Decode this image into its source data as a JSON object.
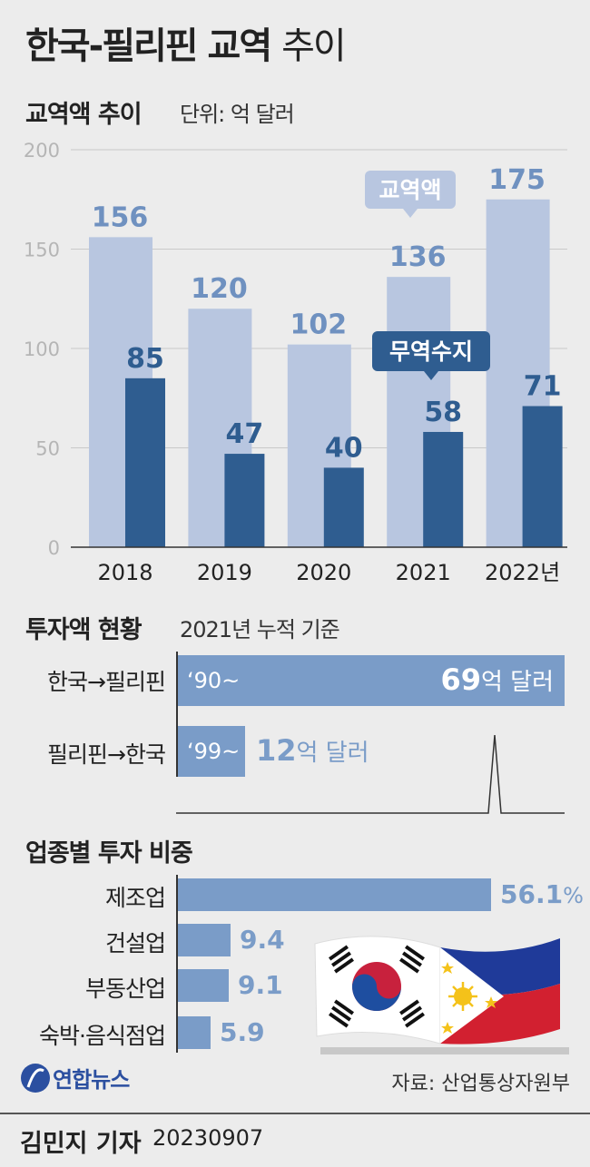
{
  "title": {
    "main": "한국-필리핀 교역",
    "suffix": "추이"
  },
  "trade": {
    "heading": "교역액 추이",
    "unit": "단위: 억 달러"
  },
  "chart_data": {
    "type": "bar",
    "title": "교역액 추이",
    "unit": "단위: 억 달러",
    "categories": [
      "2018",
      "2019",
      "2020",
      "2021",
      "2022년"
    ],
    "series": [
      {
        "name": "교역액",
        "color": "#b8c6e0",
        "label_color": "#6f91c0",
        "values": [
          156,
          120,
          102,
          136,
          175
        ]
      },
      {
        "name": "무역수지",
        "color": "#2f5d90",
        "label_color": "#2f5d90",
        "values": [
          85,
          47,
          40,
          58,
          71
        ]
      }
    ],
    "ylim": [
      0,
      200
    ],
    "yticks": [
      0,
      50,
      100,
      150,
      200
    ],
    "grid": true,
    "callouts": {
      "trade_volume": "교역액",
      "trade_balance": "무역수지"
    }
  },
  "investment": {
    "heading": "투자액 현황",
    "basis": "2021년 누적 기준",
    "rows": [
      {
        "label": "한국→필리핀",
        "period": "‘90~",
        "value": "69",
        "unit": "억 달러",
        "amount": 69
      },
      {
        "label": "필리핀→한국",
        "period": "‘99~",
        "value": "12",
        "unit": "억 달러",
        "amount": 12
      }
    ]
  },
  "sectors": {
    "heading": "업종별 투자 비중",
    "rows": [
      {
        "label": "제조업",
        "value": "56.1",
        "suffix": "%",
        "amount": 56.1
      },
      {
        "label": "건설업",
        "value": "9.4",
        "suffix": "",
        "amount": 9.4
      },
      {
        "label": "부동산업",
        "value": "9.1",
        "suffix": "",
        "amount": 9.1
      },
      {
        "label": "숙박·음식점업",
        "value": "5.9",
        "suffix": "",
        "amount": 5.9
      }
    ]
  },
  "footer": {
    "logo_text": "연합뉴스",
    "source": "자료: 산업통상자원부",
    "reporter": "김민지 기자",
    "date": "20230907"
  },
  "colors": {
    "light_bar": "#b8c6e0",
    "dark_bar": "#2f5d90",
    "inv_bar": "#7a9cc8",
    "bg": "#ececec"
  }
}
